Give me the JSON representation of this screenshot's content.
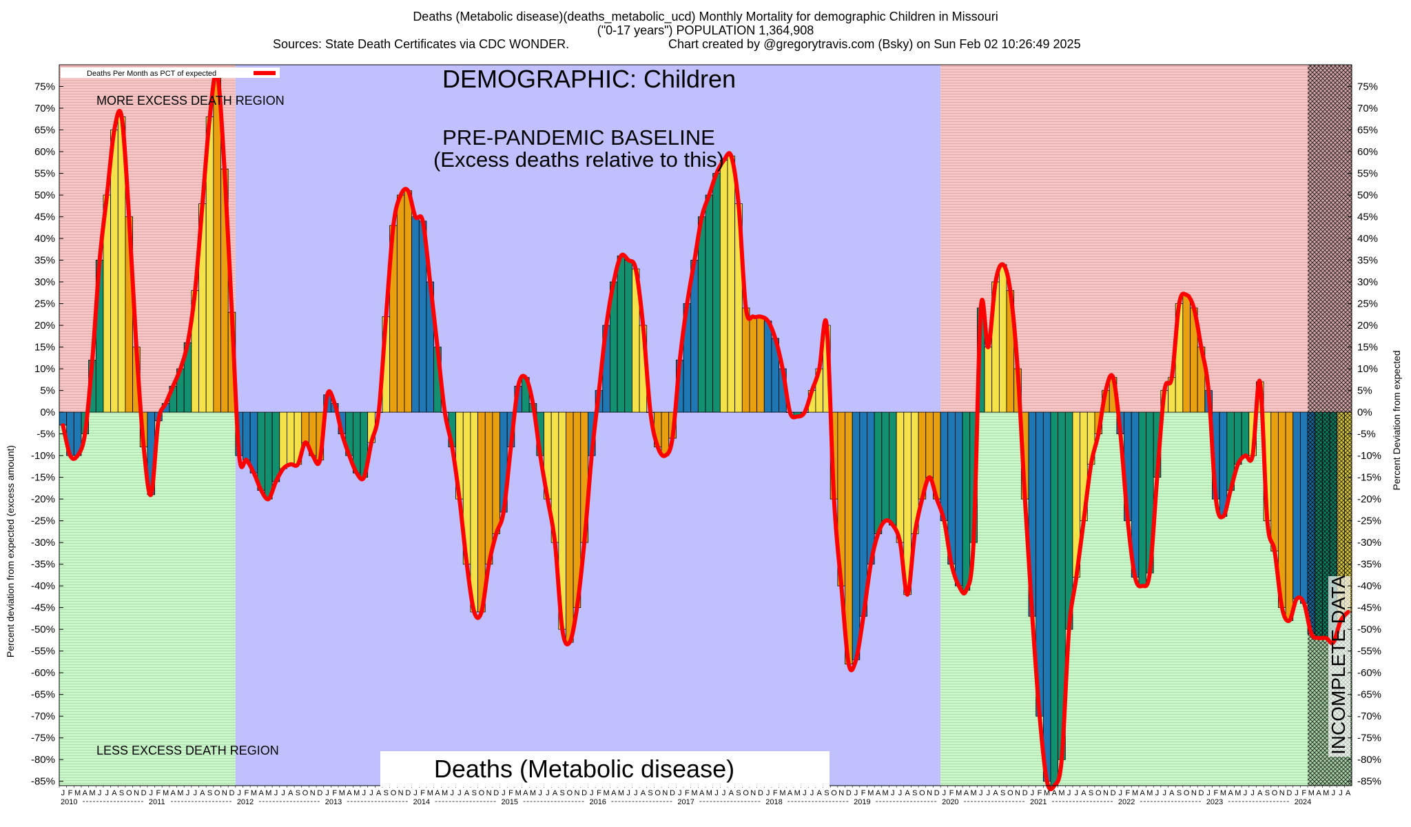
{
  "header": {
    "line1": "Deaths (Metabolic disease)(deaths_metabolic_ucd) Monthly Mortality for demographic Children in Missouri",
    "line2": "(\"0-17 years\") POPULATION 1,364,908",
    "line3_left": "Sources: State Death Certificates via CDC WONDER.",
    "line3_right": "Chart created by @gregorytravis.com (Bsky) on Sun Feb 02 10:26:49 2025"
  },
  "annotations": {
    "demographic": "DEMOGRAPHIC: Children",
    "baseline_line1": "PRE-PANDEMIC BASELINE",
    "baseline_line2": "(Excess deaths relative to this)",
    "more_region": "MORE EXCESS DEATH REGION",
    "less_region": "LESS EXCESS DEATH REGION",
    "bottom_title": "Deaths (Metabolic disease)",
    "incomplete": "INCOMPLETE DATA"
  },
  "legend": {
    "entry": "Deaths Per Month as PCT of expected",
    "color": "#ff0000"
  },
  "colors": {
    "excess_region": "#f8c4c4",
    "less_region": "#c8f8c8",
    "baseline_region": "#c0c0ff",
    "line": "#ff0000",
    "bar_palette": [
      "#1f77b4",
      "#139070",
      "#f5e24a",
      "#e8a010"
    ]
  },
  "chart_data": {
    "type": "bar",
    "title": "Deaths (Metabolic disease)(deaths_metabolic_ucd) Monthly Mortality for demographic Children in Missouri",
    "ylabel_left": "Percent deviation from expected (excess amount)",
    "ylabel_right": "Percent Deviation from expected",
    "ylim": [
      -86,
      80
    ],
    "yticks": [
      "75%",
      "70%",
      "65%",
      "60%",
      "55%",
      "50%",
      "45%",
      "40%",
      "35%",
      "30%",
      "25%",
      "20%",
      "15%",
      "10%",
      "5%",
      "0%",
      "-5%",
      "-10%",
      "-15%",
      "-20%",
      "-25%",
      "-30%",
      "-35%",
      "-40%",
      "-45%",
      "-50%",
      "-55%",
      "-60%",
      "-65%",
      "-70%",
      "-75%",
      "-80%",
      "-85%"
    ],
    "ytick_values": [
      75,
      70,
      65,
      60,
      55,
      50,
      45,
      40,
      35,
      30,
      25,
      20,
      15,
      10,
      5,
      0,
      -5,
      -10,
      -15,
      -20,
      -25,
      -30,
      -35,
      -40,
      -45,
      -50,
      -55,
      -60,
      -65,
      -70,
      -75,
      -80,
      -85
    ],
    "month_letters": [
      "J",
      "F",
      "M",
      "A",
      "M",
      "J",
      "J",
      "A",
      "S",
      "O",
      "N",
      "D"
    ],
    "years": [
      "2010",
      "2011",
      "2012",
      "2013",
      "2014",
      "2015",
      "2016",
      "2017",
      "2018",
      "2019",
      "2020",
      "2021",
      "2022",
      "2023",
      "2024"
    ],
    "start": "2010-01",
    "baseline_years": [
      "2012",
      "2019"
    ],
    "incomplete_from": "2024-03",
    "grid": true,
    "legend_position": "top-left",
    "series": [
      {
        "name": "Deaths Per Month as PCT of expected",
        "values": [
          -3,
          -10,
          -10,
          -5,
          12,
          35,
          50,
          65,
          68,
          45,
          15,
          -8,
          -19,
          -2,
          2,
          6,
          10,
          16,
          28,
          48,
          68,
          78,
          56,
          23,
          -10,
          -11,
          -14,
          -18,
          -20,
          -16,
          -13,
          -12,
          -12,
          -7,
          -10,
          -11,
          4,
          2,
          -5,
          -10,
          -14,
          -15,
          -7,
          0,
          22,
          43,
          50,
          51,
          45,
          44,
          30,
          15,
          0,
          -8,
          -20,
          -35,
          -46,
          -46,
          -35,
          -28,
          -23,
          -8,
          6,
          8,
          2,
          -10,
          -20,
          -30,
          -50,
          -53,
          -45,
          -30,
          -10,
          5,
          20,
          30,
          36,
          35,
          33,
          20,
          0,
          -8,
          -10,
          -6,
          12,
          25,
          35,
          45,
          50,
          55,
          58,
          59,
          48,
          24,
          22,
          22,
          21,
          17,
          10,
          0,
          -1,
          0,
          5,
          10,
          20,
          -20,
          -40,
          -58,
          -57,
          -47,
          -35,
          -28,
          -25,
          -26,
          -30,
          -42,
          -28,
          -20,
          -15,
          -20,
          -25,
          -35,
          -40,
          -41,
          -30,
          24,
          15,
          30,
          34,
          28,
          10,
          -20,
          -47,
          -70,
          -85,
          -86,
          -80,
          -50,
          -38,
          -25,
          -12,
          -5,
          5,
          8,
          -5,
          -25,
          -38,
          -40,
          -37,
          -15,
          5,
          8,
          25,
          27,
          24,
          15,
          5,
          -20,
          -24,
          -18,
          -12,
          -10,
          -10,
          7,
          -25,
          -32,
          -45,
          -48,
          -43,
          -44,
          -51,
          -52,
          -52,
          -53,
          -48,
          -46
        ]
      }
    ]
  }
}
